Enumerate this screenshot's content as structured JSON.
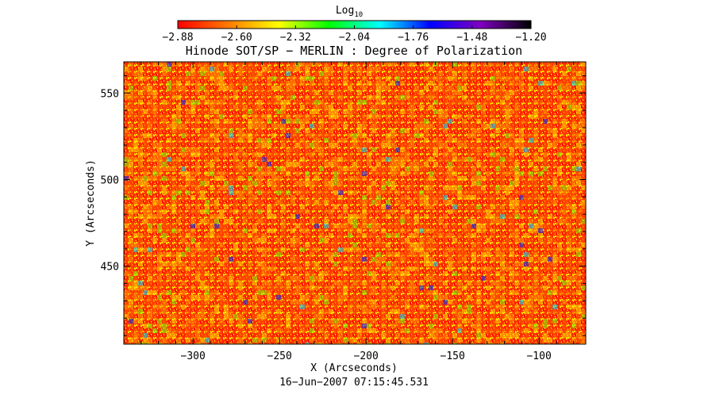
{
  "chart_data": {
    "type": "heatmap",
    "title": "Hinode SOT/SP − MERLIN : Degree of Polarization",
    "xlabel": "X (Arcseconds)",
    "ylabel": "Y (Arcseconds)",
    "xlim": [
      -340,
      -73
    ],
    "ylim": [
      405,
      568
    ],
    "x_ticks": [
      -300,
      -250,
      -200,
      -150,
      -100
    ],
    "x_tick_labels": [
      "−300",
      "−250",
      "−200",
      "−150",
      "−100"
    ],
    "y_ticks": [
      450,
      500,
      550
    ],
    "y_tick_labels": [
      "450",
      "500",
      "550"
    ],
    "timestamp": "16−Jun−2007 07:15:45.531",
    "colorbar": {
      "title_base": "Log",
      "title_subscript": "10",
      "range": [
        -2.88,
        -1.2
      ],
      "ticks": [
        -2.88,
        -2.6,
        -2.32,
        -2.04,
        -1.76,
        -1.48,
        -1.2
      ],
      "tick_labels": [
        "−2.88",
        "−2.60",
        "−2.32",
        "−2.04",
        "−1.76",
        "−1.48",
        "−1.20"
      ],
      "colormap": [
        "#ff0000",
        "#ff7a00",
        "#ffff00",
        "#00ff00",
        "#00ffff",
        "#0000ff",
        "#8000c0",
        "#000000"
      ]
    },
    "dominant_value_range": [
      -2.88,
      -2.5
    ],
    "notes_visible": "speckled red/orange/yellow field with sparse green and blue patches",
    "grid": false
  }
}
